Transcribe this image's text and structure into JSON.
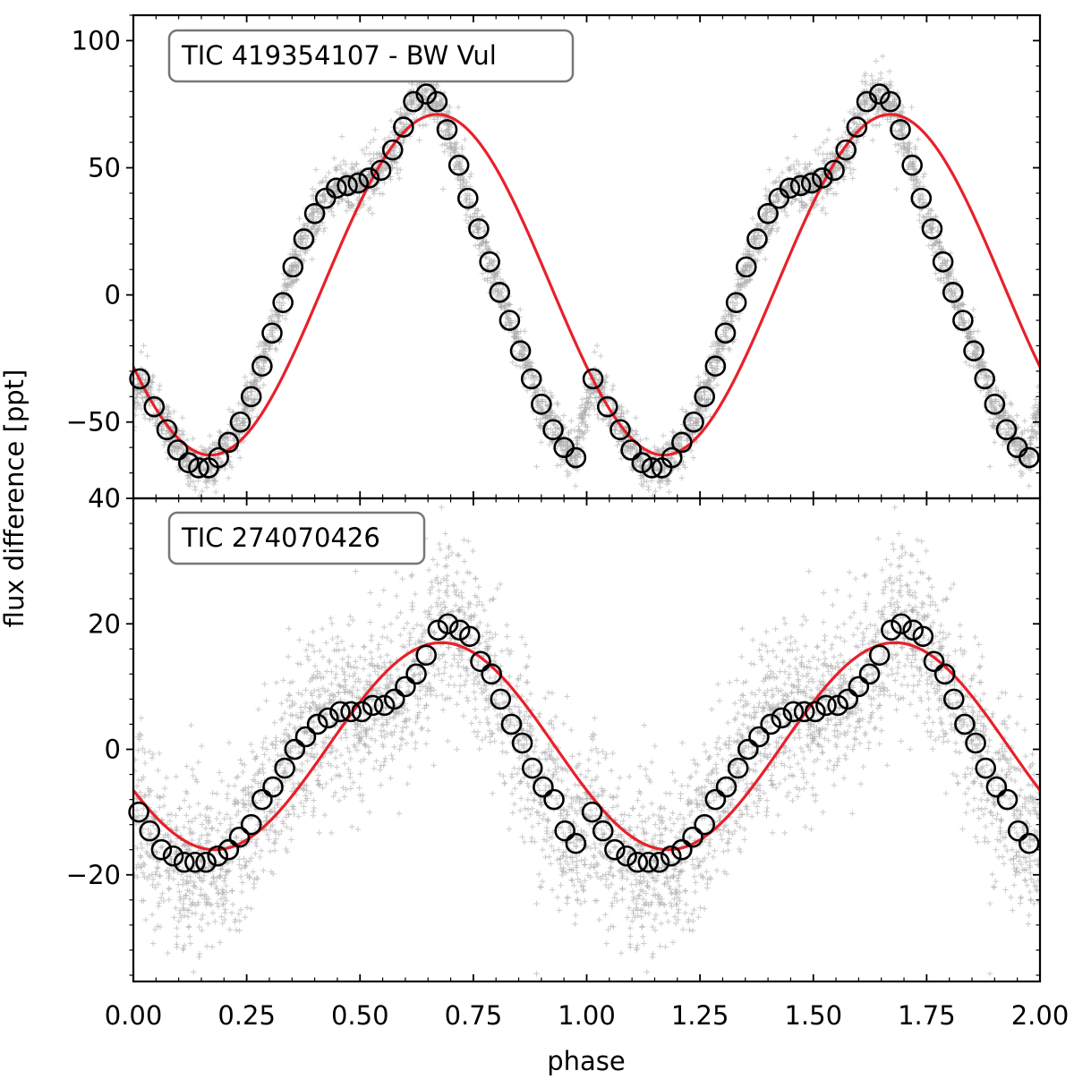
{
  "figure": {
    "xlabel": "phase",
    "ylabel": "flux difference [ppt]",
    "x_ticks": [
      "0.00",
      "0.25",
      "0.50",
      "0.75",
      "1.00",
      "1.25",
      "1.50",
      "1.75",
      "2.00"
    ]
  },
  "chart_data": [
    {
      "type": "scatter",
      "title": "TIC 419354107 - BW Vul",
      "xlabel": "phase",
      "ylabel": "flux difference [ppt]",
      "xlim": [
        0.0,
        2.0
      ],
      "ylim": [
        -80,
        110
      ],
      "y_ticks": [
        100,
        50,
        0,
        -50
      ],
      "y_tick_labels": [
        "100",
        "50",
        "0",
        "−50"
      ],
      "colors": {
        "raw": "#a6a6a6",
        "binned": "#000000",
        "model": "#e8202a"
      },
      "series": [
        {
          "name": "binned (one cycle, repeated at phase + 1)",
          "style": "open-circle",
          "x": [
            0.014,
            0.046,
            0.074,
            0.098,
            0.122,
            0.144,
            0.166,
            0.188,
            0.21,
            0.236,
            0.26,
            0.284,
            0.306,
            0.33,
            0.352,
            0.376,
            0.4,
            0.424,
            0.448,
            0.472,
            0.496,
            0.52,
            0.546,
            0.572,
            0.596,
            0.618,
            0.646,
            0.67,
            0.692,
            0.718,
            0.738,
            0.762,
            0.786,
            0.808,
            0.83,
            0.854,
            0.878,
            0.9,
            0.926,
            0.95,
            0.976
          ],
          "y": [
            -33,
            -44,
            -53,
            -61,
            -66,
            -68,
            -68,
            -64,
            -58,
            -50,
            -40,
            -28,
            -15,
            -3,
            11,
            22,
            32,
            38,
            42,
            43,
            44,
            46,
            49,
            57,
            66,
            76,
            79,
            76,
            65,
            51,
            38,
            26,
            13,
            1,
            -10,
            -22,
            -33,
            -43,
            -53,
            -60,
            -64
          ]
        },
        {
          "name": "sinusoid model",
          "style": "line",
          "mean": 4,
          "amplitude": 67,
          "phase_of_max": 0.67
        },
        {
          "name": "raw photometry",
          "style": "gray plus markers",
          "scatter_ppt": 5.5
        }
      ]
    },
    {
      "type": "scatter",
      "title": "TIC 274070426",
      "xlabel": "phase",
      "ylabel": "flux difference [ppt]",
      "xlim": [
        0.0,
        2.0
      ],
      "ylim": [
        -37,
        40
      ],
      "y_ticks": [
        40,
        20,
        0,
        -20
      ],
      "y_tick_labels": [
        "40",
        "20",
        "0",
        "−20"
      ],
      "colors": {
        "raw": "#a6a6a6",
        "binned": "#000000",
        "model": "#e8202a"
      },
      "series": [
        {
          "name": "binned (one cycle, repeated at phase + 1)",
          "style": "open-circle",
          "x": [
            0.012,
            0.036,
            0.062,
            0.088,
            0.112,
            0.136,
            0.16,
            0.186,
            0.21,
            0.234,
            0.26,
            0.284,
            0.308,
            0.334,
            0.356,
            0.38,
            0.406,
            0.43,
            0.456,
            0.48,
            0.504,
            0.528,
            0.554,
            0.576,
            0.6,
            0.624,
            0.646,
            0.672,
            0.694,
            0.72,
            0.742,
            0.766,
            0.79,
            0.81,
            0.834,
            0.858,
            0.88,
            0.904,
            0.928,
            0.952,
            0.976
          ],
          "y": [
            -10,
            -13,
            -16,
            -17,
            -18,
            -18,
            -18,
            -17,
            -16,
            -14,
            -12,
            -8,
            -6,
            -3,
            0,
            2,
            4,
            5,
            6,
            6,
            6,
            7,
            7,
            8,
            10,
            12,
            15,
            19,
            20,
            19,
            18,
            14,
            12,
            8,
            4,
            1,
            -3,
            -6,
            -8,
            -13,
            -15
          ]
        },
        {
          "name": "sinusoid model",
          "style": "line",
          "mean": 0.5,
          "amplitude": 16.5,
          "phase_of_max": 0.68
        },
        {
          "name": "raw photometry",
          "style": "gray plus markers",
          "scatter_ppt": 5.5
        }
      ]
    }
  ]
}
